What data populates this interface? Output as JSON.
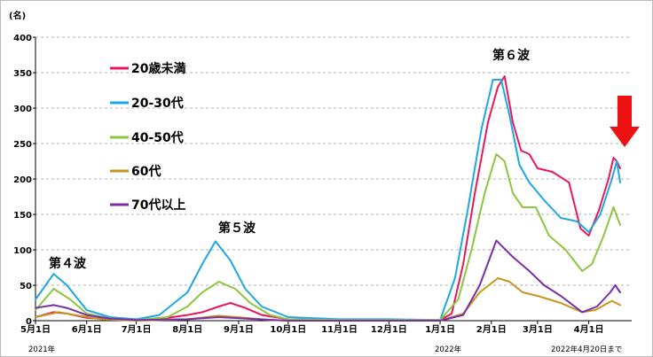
{
  "chart_data": {
    "type": "line",
    "unit_label": "(名)",
    "ylim": [
      0,
      400
    ],
    "y_ticks": [
      0,
      50,
      100,
      150,
      200,
      250,
      300,
      350,
      400
    ],
    "x_ticks": [
      "5月1日",
      "6月1日",
      "7月1日",
      "8月1日",
      "9月1日",
      "10月1日",
      "11月1日",
      "12月1日",
      "1月1日",
      "2月1日",
      "3月1日",
      "4月1日"
    ],
    "x_notes": [
      "2021年",
      "2022年",
      "2022年4月20日まで"
    ],
    "grid": true,
    "legend_position": "upper-left",
    "wave_labels": [
      "第４波",
      "第５波",
      "第６波"
    ],
    "highlight": {
      "marker": "down-arrow",
      "color": "#ee1111",
      "at": "2022-04-20"
    },
    "series": [
      {
        "name": "20歳未満",
        "color": "#e8175d",
        "points": [
          [
            "2021-05-01",
            5
          ],
          [
            "2021-05-12",
            12
          ],
          [
            "2021-05-20",
            10
          ],
          [
            "2021-06-01",
            4
          ],
          [
            "2021-06-15",
            2
          ],
          [
            "2021-07-01",
            1
          ],
          [
            "2021-07-20",
            4
          ],
          [
            "2021-08-01",
            8
          ],
          [
            "2021-08-10",
            12
          ],
          [
            "2021-08-20",
            20
          ],
          [
            "2021-08-27",
            25
          ],
          [
            "2021-09-05",
            18
          ],
          [
            "2021-09-15",
            8
          ],
          [
            "2021-10-01",
            2
          ],
          [
            "2021-11-01",
            1
          ],
          [
            "2021-12-01",
            1
          ],
          [
            "2022-01-01",
            1
          ],
          [
            "2022-01-08",
            10
          ],
          [
            "2022-01-15",
            80
          ],
          [
            "2022-01-22",
            180
          ],
          [
            "2022-01-30",
            280
          ],
          [
            "2022-02-05",
            330
          ],
          [
            "2022-02-09",
            345
          ],
          [
            "2022-02-14",
            280
          ],
          [
            "2022-02-19",
            240
          ],
          [
            "2022-02-24",
            235
          ],
          [
            "2022-03-01",
            215
          ],
          [
            "2022-03-10",
            210
          ],
          [
            "2022-03-20",
            195
          ],
          [
            "2022-03-27",
            130
          ],
          [
            "2022-04-01",
            120
          ],
          [
            "2022-04-07",
            155
          ],
          [
            "2022-04-13",
            200
          ],
          [
            "2022-04-16",
            230
          ],
          [
            "2022-04-18",
            225
          ],
          [
            "2022-04-20",
            215
          ]
        ]
      },
      {
        "name": "20-30代",
        "color": "#1ea7e4",
        "points": [
          [
            "2021-05-01",
            30
          ],
          [
            "2021-05-12",
            66
          ],
          [
            "2021-05-20",
            50
          ],
          [
            "2021-06-01",
            15
          ],
          [
            "2021-06-15",
            5
          ],
          [
            "2021-07-01",
            2
          ],
          [
            "2021-07-15",
            8
          ],
          [
            "2021-08-01",
            40
          ],
          [
            "2021-08-10",
            80
          ],
          [
            "2021-08-18",
            112
          ],
          [
            "2021-08-27",
            85
          ],
          [
            "2021-09-05",
            45
          ],
          [
            "2021-09-15",
            20
          ],
          [
            "2021-10-01",
            5
          ],
          [
            "2021-11-01",
            2
          ],
          [
            "2021-12-01",
            2
          ],
          [
            "2022-01-01",
            1
          ],
          [
            "2022-01-10",
            60
          ],
          [
            "2022-01-18",
            160
          ],
          [
            "2022-01-26",
            270
          ],
          [
            "2022-02-02",
            340
          ],
          [
            "2022-02-07",
            340
          ],
          [
            "2022-02-12",
            290
          ],
          [
            "2022-02-18",
            220
          ],
          [
            "2022-02-24",
            195
          ],
          [
            "2022-03-05",
            170
          ],
          [
            "2022-03-15",
            145
          ],
          [
            "2022-03-25",
            140
          ],
          [
            "2022-04-01",
            125
          ],
          [
            "2022-04-08",
            150
          ],
          [
            "2022-04-15",
            200
          ],
          [
            "2022-04-18",
            225
          ],
          [
            "2022-04-20",
            195
          ]
        ]
      },
      {
        "name": "40-50代",
        "color": "#8dc63f",
        "points": [
          [
            "2021-05-01",
            15
          ],
          [
            "2021-05-12",
            45
          ],
          [
            "2021-05-22",
            30
          ],
          [
            "2021-06-01",
            10
          ],
          [
            "2021-06-15",
            3
          ],
          [
            "2021-07-01",
            1
          ],
          [
            "2021-07-20",
            5
          ],
          [
            "2021-08-01",
            20
          ],
          [
            "2021-08-10",
            40
          ],
          [
            "2021-08-20",
            55
          ],
          [
            "2021-08-30",
            45
          ],
          [
            "2021-09-08",
            25
          ],
          [
            "2021-09-20",
            8
          ],
          [
            "2021-10-01",
            2
          ],
          [
            "2021-11-01",
            1
          ],
          [
            "2021-12-01",
            1
          ],
          [
            "2022-01-01",
            1
          ],
          [
            "2022-01-12",
            30
          ],
          [
            "2022-01-20",
            100
          ],
          [
            "2022-01-28",
            180
          ],
          [
            "2022-02-04",
            235
          ],
          [
            "2022-02-09",
            225
          ],
          [
            "2022-02-14",
            180
          ],
          [
            "2022-02-20",
            160
          ],
          [
            "2022-02-28",
            160
          ],
          [
            "2022-03-08",
            120
          ],
          [
            "2022-03-18",
            100
          ],
          [
            "2022-03-28",
            70
          ],
          [
            "2022-04-03",
            80
          ],
          [
            "2022-04-10",
            120
          ],
          [
            "2022-04-16",
            160
          ],
          [
            "2022-04-20",
            135
          ]
        ]
      },
      {
        "name": "60代",
        "color": "#c8961e",
        "points": [
          [
            "2021-05-01",
            5
          ],
          [
            "2021-05-15",
            12
          ],
          [
            "2021-05-25",
            8
          ],
          [
            "2021-06-10",
            2
          ],
          [
            "2021-07-01",
            0
          ],
          [
            "2021-08-01",
            2
          ],
          [
            "2021-08-20",
            7
          ],
          [
            "2021-09-05",
            4
          ],
          [
            "2021-09-20",
            1
          ],
          [
            "2021-10-01",
            0
          ],
          [
            "2022-01-01",
            0
          ],
          [
            "2022-01-15",
            10
          ],
          [
            "2022-01-25",
            40
          ],
          [
            "2022-02-05",
            60
          ],
          [
            "2022-02-12",
            55
          ],
          [
            "2022-02-20",
            40
          ],
          [
            "2022-03-01",
            35
          ],
          [
            "2022-03-15",
            25
          ],
          [
            "2022-03-28",
            12
          ],
          [
            "2022-04-05",
            15
          ],
          [
            "2022-04-15",
            28
          ],
          [
            "2022-04-20",
            22
          ]
        ]
      },
      {
        "name": "70代以上",
        "color": "#7b2fa6",
        "points": [
          [
            "2021-05-01",
            18
          ],
          [
            "2021-05-12",
            22
          ],
          [
            "2021-05-20",
            18
          ],
          [
            "2021-06-01",
            8
          ],
          [
            "2021-06-15",
            3
          ],
          [
            "2021-07-01",
            1
          ],
          [
            "2021-08-01",
            2
          ],
          [
            "2021-08-20",
            5
          ],
          [
            "2021-09-05",
            3
          ],
          [
            "2021-10-01",
            0
          ],
          [
            "2022-01-01",
            0
          ],
          [
            "2022-01-15",
            8
          ],
          [
            "2022-01-25",
            50
          ],
          [
            "2022-02-04",
            113
          ],
          [
            "2022-02-14",
            90
          ],
          [
            "2022-02-24",
            70
          ],
          [
            "2022-03-05",
            50
          ],
          [
            "2022-03-15",
            35
          ],
          [
            "2022-03-28",
            12
          ],
          [
            "2022-04-06",
            20
          ],
          [
            "2022-04-14",
            40
          ],
          [
            "2022-04-17",
            50
          ],
          [
            "2022-04-20",
            40
          ]
        ]
      }
    ]
  }
}
